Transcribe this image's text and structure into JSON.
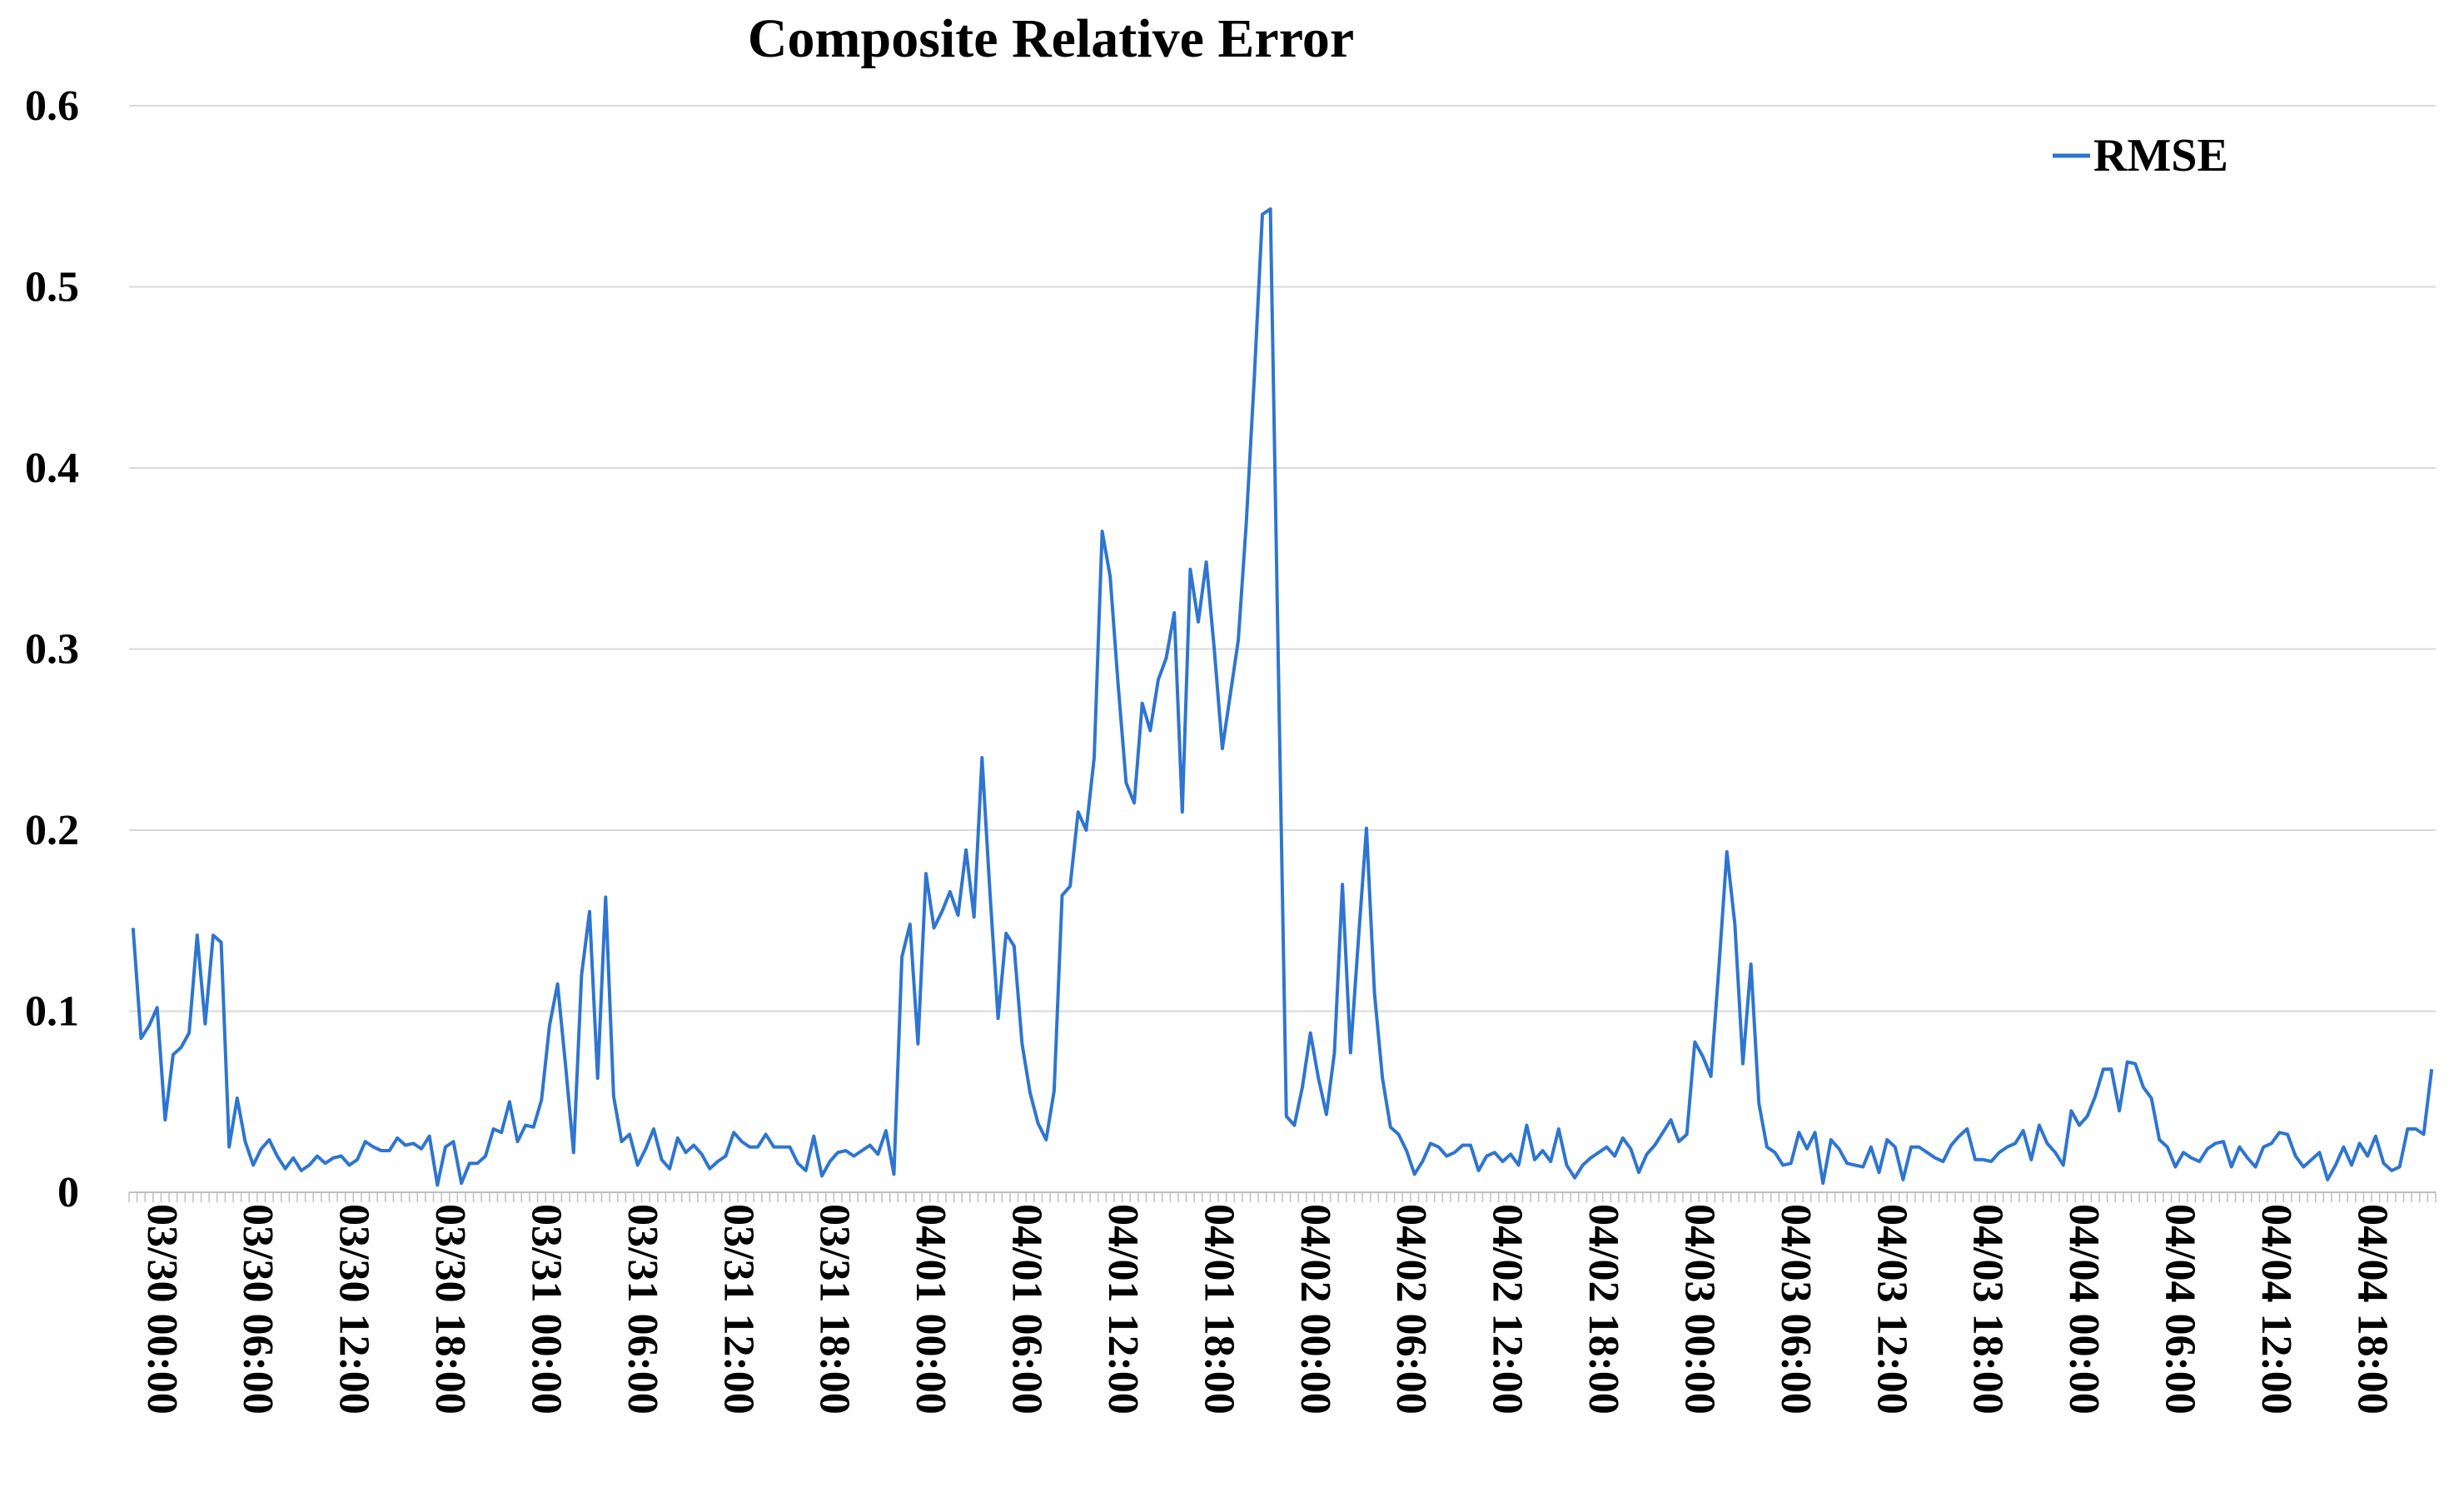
{
  "chart_data": {
    "type": "line",
    "title": "Composite Relative Error",
    "xlabel": "",
    "ylabel": "",
    "ylim": [
      0,
      0.6
    ],
    "y_ticks": [
      "0",
      "0.1",
      "0.2",
      "0.3",
      "0.4",
      "0.5",
      "0.6"
    ],
    "x_tick_labels": [
      "03/30 00:00",
      "03/30 06:00",
      "03/30 12:00",
      "03/30 18:00",
      "03/31 00:00",
      "03/31 06:00",
      "03/31 12:00",
      "03/31 18:00",
      "04/01 00:00",
      "04/01 06:00",
      "04/01 12:00",
      "04/01 18:00",
      "04/02 00:00",
      "04/02 06:00",
      "04/02 12:00",
      "04/02 18:00",
      "04/03 00:00",
      "04/03 06:00",
      "04/03 12:00",
      "04/03 18:00",
      "04/04 00:00",
      "04/04 06:00",
      "04/04 12:00",
      "04/04 18:00"
    ],
    "x_interval_hours": 0.5,
    "grid": true,
    "legend_position": "top-right",
    "series": [
      {
        "name": "RMSE",
        "color": "#2E75D0",
        "values": [
          0.146,
          0.085,
          0.092,
          0.102,
          0.04,
          0.076,
          0.08,
          0.088,
          0.142,
          0.093,
          0.142,
          0.138,
          0.025,
          0.052,
          0.028,
          0.015,
          0.024,
          0.029,
          0.02,
          0.013,
          0.019,
          0.012,
          0.015,
          0.02,
          0.016,
          0.019,
          0.02,
          0.015,
          0.018,
          0.028,
          0.025,
          0.023,
          0.023,
          0.03,
          0.026,
          0.027,
          0.024,
          0.031,
          0.004,
          0.025,
          0.028,
          0.005,
          0.016,
          0.016,
          0.02,
          0.035,
          0.033,
          0.05,
          0.028,
          0.037,
          0.036,
          0.051,
          0.092,
          0.115,
          0.07,
          0.022,
          0.12,
          0.155,
          0.063,
          0.163,
          0.053,
          0.028,
          0.032,
          0.015,
          0.024,
          0.035,
          0.018,
          0.013,
          0.03,
          0.022,
          0.026,
          0.021,
          0.013,
          0.017,
          0.02,
          0.033,
          0.028,
          0.025,
          0.025,
          0.032,
          0.025,
          0.025,
          0.025,
          0.016,
          0.012,
          0.031,
          0.009,
          0.017,
          0.022,
          0.023,
          0.02,
          0.023,
          0.026,
          0.021,
          0.034,
          0.01,
          0.13,
          0.148,
          0.082,
          0.176,
          0.146,
          0.155,
          0.166,
          0.153,
          0.189,
          0.152,
          0.24,
          0.165,
          0.096,
          0.143,
          0.136,
          0.082,
          0.055,
          0.038,
          0.029,
          0.056,
          0.164,
          0.169,
          0.21,
          0.2,
          0.24,
          0.365,
          0.34,
          0.28,
          0.226,
          0.215,
          0.27,
          0.255,
          0.283,
          0.295,
          0.32,
          0.21,
          0.344,
          0.315,
          0.348,
          0.3,
          0.245,
          0.275,
          0.305,
          0.37,
          0.45,
          0.54,
          0.543,
          0.29,
          0.042,
          0.037,
          0.058,
          0.088,
          0.063,
          0.043,
          0.077,
          0.17,
          0.077,
          0.14,
          0.201,
          0.11,
          0.063,
          0.036,
          0.032,
          0.023,
          0.01,
          0.017,
          0.027,
          0.025,
          0.02,
          0.022,
          0.026,
          0.026,
          0.012,
          0.02,
          0.022,
          0.017,
          0.021,
          0.015,
          0.037,
          0.018,
          0.023,
          0.017,
          0.035,
          0.015,
          0.008,
          0.015,
          0.019,
          0.022,
          0.025,
          0.02,
          0.03,
          0.024,
          0.011,
          0.021,
          0.026,
          0.033,
          0.04,
          0.028,
          0.032,
          0.083,
          0.075,
          0.064,
          0.124,
          0.188,
          0.148,
          0.071,
          0.126,
          0.049,
          0.025,
          0.022,
          0.015,
          0.016,
          0.033,
          0.024,
          0.033,
          0.005,
          0.029,
          0.024,
          0.016,
          0.015,
          0.014,
          0.025,
          0.011,
          0.029,
          0.025,
          0.007,
          0.025,
          0.025,
          0.022,
          0.019,
          0.017,
          0.026,
          0.031,
          0.035,
          0.018,
          0.018,
          0.017,
          0.022,
          0.025,
          0.027,
          0.034,
          0.018,
          0.037,
          0.027,
          0.022,
          0.015,
          0.045,
          0.037,
          0.042,
          0.053,
          0.068,
          0.068,
          0.045,
          0.072,
          0.071,
          0.058,
          0.052,
          0.029,
          0.025,
          0.014,
          0.022,
          0.019,
          0.017,
          0.024,
          0.027,
          0.028,
          0.014,
          0.025,
          0.019,
          0.014,
          0.025,
          0.027,
          0.033,
          0.032,
          0.02,
          0.014,
          0.018,
          0.022,
          0.007,
          0.015,
          0.025,
          0.015,
          0.027,
          0.02,
          0.031,
          0.016,
          0.012,
          0.014,
          0.035,
          0.035,
          0.032,
          0.068
        ]
      }
    ]
  }
}
